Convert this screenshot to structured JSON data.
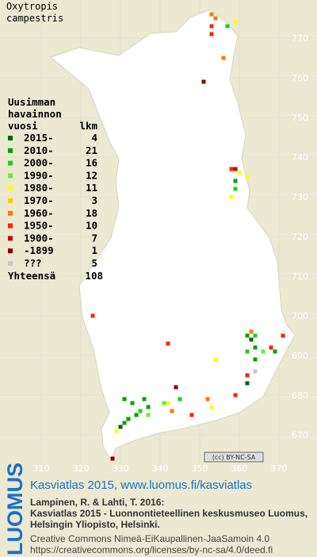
{
  "map": {
    "title_lines": [
      "Oxytropis",
      "campestris"
    ],
    "legend": {
      "header_lines": [
        "Uusimman",
        "havainnon"
      ],
      "col1": "vuosi",
      "col2": "lkm",
      "rows": [
        {
          "label": "2015-",
          "count": 4,
          "color": "#006400"
        },
        {
          "label": "2010-",
          "count": 21,
          "color": "#00a000"
        },
        {
          "label": "2000-",
          "count": 16,
          "color": "#22cc22"
        },
        {
          "label": "1990-",
          "count": 12,
          "color": "#66ee33"
        },
        {
          "label": "1980-",
          "count": 11,
          "color": "#ffff00"
        },
        {
          "label": "1970-",
          "count": 3,
          "color": "#ffcc00"
        },
        {
          "label": "1960-",
          "count": 18,
          "color": "#ff7700"
        },
        {
          "label": "1950-",
          "count": 10,
          "color": "#ff2200"
        },
        {
          "label": "1900-",
          "count": 7,
          "color": "#cc0000"
        },
        {
          "label": "-1899",
          "count": 1,
          "color": "#880000"
        },
        {
          "label": "???",
          "count": 5,
          "color": "#c8c8c8"
        }
      ],
      "total_label": "Yhteensä",
      "total": 108
    },
    "xlim": [
      300,
      380
    ],
    "ylim": [
      662,
      780
    ],
    "xticks": [
      310,
      320,
      330,
      340,
      350,
      360,
      370
    ],
    "yticks": [
      670,
      680,
      690,
      700,
      710,
      720,
      730,
      740,
      750,
      760,
      770
    ],
    "points": [
      {
        "x": 353,
        "y": 776,
        "period": 6
      },
      {
        "x": 354,
        "y": 775,
        "period": 6
      },
      {
        "x": 353,
        "y": 773,
        "period": 7
      },
      {
        "x": 357,
        "y": 773,
        "period": 2
      },
      {
        "x": 359,
        "y": 774,
        "period": 4
      },
      {
        "x": 353,
        "y": 771,
        "period": 7
      },
      {
        "x": 356,
        "y": 765,
        "period": 6
      },
      {
        "x": 351,
        "y": 759,
        "period": 9
      },
      {
        "x": 358,
        "y": 737,
        "period": 7
      },
      {
        "x": 359,
        "y": 737,
        "period": 8
      },
      {
        "x": 360,
        "y": 736,
        "period": 4
      },
      {
        "x": 362,
        "y": 735,
        "period": 4
      },
      {
        "x": 359,
        "y": 734,
        "period": 1
      },
      {
        "x": 359,
        "y": 732,
        "period": 2
      },
      {
        "x": 358,
        "y": 730,
        "period": 4
      },
      {
        "x": 323,
        "y": 700,
        "period": 7
      },
      {
        "x": 342,
        "y": 693,
        "period": 7
      },
      {
        "x": 362,
        "y": 695,
        "period": 1
      },
      {
        "x": 363,
        "y": 696,
        "period": 6
      },
      {
        "x": 364,
        "y": 695,
        "period": 2
      },
      {
        "x": 371,
        "y": 695,
        "period": 7
      },
      {
        "x": 363,
        "y": 694,
        "period": 0
      },
      {
        "x": 362,
        "y": 691,
        "period": 2
      },
      {
        "x": 364,
        "y": 692,
        "period": 1
      },
      {
        "x": 366,
        "y": 691,
        "period": 3
      },
      {
        "x": 368,
        "y": 692,
        "period": 7
      },
      {
        "x": 369,
        "y": 691,
        "period": 1
      },
      {
        "x": 364,
        "y": 689,
        "period": 1
      },
      {
        "x": 354,
        "y": 689,
        "period": 4
      },
      {
        "x": 362,
        "y": 685,
        "period": 7
      },
      {
        "x": 364,
        "y": 686,
        "period": 10
      },
      {
        "x": 362,
        "y": 683,
        "period": 0
      },
      {
        "x": 359,
        "y": 680,
        "period": 7
      },
      {
        "x": 344,
        "y": 682,
        "period": 9
      },
      {
        "x": 345,
        "y": 679,
        "period": 2
      },
      {
        "x": 342,
        "y": 678,
        "period": 4
      },
      {
        "x": 341,
        "y": 678,
        "period": 3
      },
      {
        "x": 343,
        "y": 676,
        "period": 6
      },
      {
        "x": 348,
        "y": 675,
        "period": 7
      },
      {
        "x": 352,
        "y": 679,
        "period": 6
      },
      {
        "x": 353,
        "y": 677,
        "period": 4
      },
      {
        "x": 331,
        "y": 679,
        "period": 1
      },
      {
        "x": 333,
        "y": 678,
        "period": 1
      },
      {
        "x": 336,
        "y": 679,
        "period": 1
      },
      {
        "x": 337,
        "y": 677,
        "period": 1
      },
      {
        "x": 335,
        "y": 676,
        "period": 2
      },
      {
        "x": 334,
        "y": 675,
        "period": 1
      },
      {
        "x": 337,
        "y": 675,
        "period": 3
      },
      {
        "x": 332,
        "y": 674,
        "period": 1
      },
      {
        "x": 331,
        "y": 673,
        "period": 1
      },
      {
        "x": 330,
        "y": 672,
        "period": 0
      },
      {
        "x": 329,
        "y": 671,
        "period": 4
      },
      {
        "x": 328,
        "y": 664,
        "period": 9
      }
    ]
  },
  "footer": {
    "logo": "LUOMUS",
    "headline": "Kasviatlas 2015, www.luomus.fi/kasviatlas",
    "citation_lines": [
      "Lampinen, R. & Lahti, T. 2016:",
      "Kasviatlas 2015 - Luonnontieteellinen keskusmuseo Luomus,",
      "Helsingin Yliopisto, Helsinki."
    ],
    "license_lines": [
      "Creative Commons Nimeä-EiKaupallinen-JaaSamoin 4.0",
      "https://creativecommons.org/licenses/by-nc-sa/4.0/deed.fi"
    ],
    "badge": "(cc) BY-NC-SA"
  }
}
